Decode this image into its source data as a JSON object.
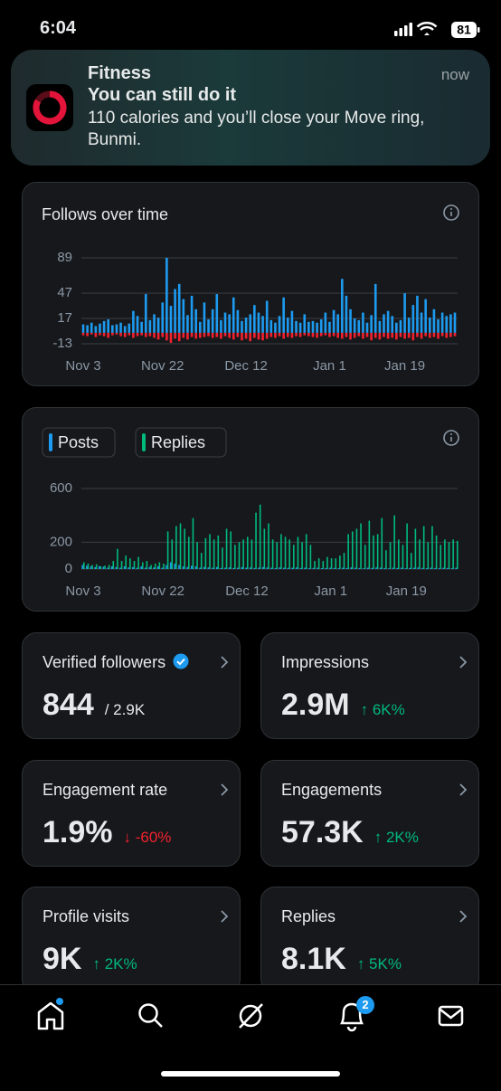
{
  "status_bar": {
    "time": "6:04",
    "battery": "81"
  },
  "notification": {
    "app": "Fitness",
    "title": "You can still do it",
    "body": "110 calories and you’ll close your Move ring, Bunmi.",
    "time": "now"
  },
  "chart_data": [
    {
      "type": "bar",
      "title": "Follows over time",
      "categories": [
        "Nov 3",
        null,
        null,
        null,
        null,
        null,
        null,
        null,
        null,
        null,
        null,
        null,
        null,
        null,
        null,
        null,
        null,
        null,
        null,
        "Nov 22",
        null,
        null,
        null,
        null,
        null,
        null,
        null,
        null,
        null,
        null,
        null,
        null,
        null,
        null,
        null,
        null,
        null,
        null,
        null,
        "Dec 12",
        null,
        null,
        null,
        null,
        null,
        null,
        null,
        null,
        null,
        null,
        null,
        null,
        null,
        null,
        null,
        null,
        null,
        null,
        null,
        "Jan 1",
        null,
        null,
        null,
        null,
        null,
        null,
        null,
        null,
        null,
        null,
        null,
        null,
        null,
        null,
        null,
        null,
        null,
        "Jan 19",
        null,
        null,
        null,
        null,
        null,
        null,
        null,
        null,
        null,
        null,
        null,
        null
      ],
      "series": [
        {
          "color": "#1d9bf0",
          "values": [
            10,
            9,
            12,
            8,
            11,
            14,
            16,
            9,
            10,
            12,
            8,
            11,
            26,
            20,
            13,
            46,
            15,
            22,
            18,
            36,
            89,
            32,
            52,
            58,
            40,
            21,
            44,
            28,
            13,
            36,
            16,
            28,
            46,
            15,
            24,
            22,
            42,
            27,
            14,
            18,
            22,
            33,
            24,
            20,
            38,
            15,
            12,
            20,
            42,
            18,
            26,
            14,
            12,
            22,
            13,
            14,
            12,
            16,
            24,
            13,
            27,
            22,
            64,
            44,
            28,
            17,
            15,
            24,
            12,
            21,
            58,
            14,
            22,
            26,
            20,
            12,
            15,
            47,
            18,
            33,
            44,
            24,
            40,
            18,
            28,
            16,
            24,
            20,
            22,
            24
          ]
        },
        {
          "color": "#f4212e",
          "values": [
            -3,
            -4,
            -2,
            -5,
            -3,
            -4,
            -6,
            -3,
            -2,
            -4,
            -5,
            -3,
            -6,
            -4,
            -3,
            -5,
            -4,
            -6,
            -8,
            -5,
            -9,
            -12,
            -7,
            -10,
            -6,
            -8,
            -5,
            -7,
            -6,
            -5,
            -4,
            -6,
            -5,
            -7,
            -4,
            -6,
            -8,
            -5,
            -9,
            -7,
            -10,
            -6,
            -8,
            -9,
            -7,
            -5,
            -6,
            -4,
            -7,
            -5,
            -6,
            -4,
            -5,
            -3,
            -4,
            -5,
            -6,
            -4,
            -3,
            -5,
            -4,
            -6,
            -7,
            -5,
            -8,
            -6,
            -4,
            -7,
            -5,
            -9,
            -6,
            -8,
            -5,
            -7,
            -6,
            -8,
            -5,
            -7,
            -6,
            -9,
            -5,
            -7,
            -4,
            -6,
            -5,
            -7,
            -4,
            -6,
            -5,
            -4
          ]
        }
      ],
      "ylim": [
        -13,
        89
      ],
      "yticks": [
        89,
        47,
        17,
        -13
      ],
      "grid": true
    },
    {
      "type": "bar",
      "categories": [
        "Nov 3",
        null,
        null,
        null,
        null,
        null,
        null,
        null,
        null,
        null,
        null,
        null,
        null,
        null,
        null,
        null,
        null,
        null,
        null,
        "Nov 22",
        null,
        null,
        null,
        null,
        null,
        null,
        null,
        null,
        null,
        null,
        null,
        null,
        null,
        null,
        null,
        null,
        null,
        null,
        null,
        "Dec 12",
        null,
        null,
        null,
        null,
        null,
        null,
        null,
        null,
        null,
        null,
        null,
        null,
        null,
        null,
        null,
        null,
        null,
        null,
        null,
        "Jan 1",
        null,
        null,
        null,
        null,
        null,
        null,
        null,
        null,
        null,
        null,
        null,
        null,
        null,
        null,
        null,
        null,
        null,
        "Jan 19",
        null,
        null,
        null,
        null,
        null,
        null,
        null,
        null,
        null,
        null,
        null,
        null
      ],
      "series": [
        {
          "name": "Posts",
          "color": "#1d9bf0",
          "values": [
            30,
            25,
            20,
            15,
            22,
            18,
            10,
            20,
            15,
            10,
            20,
            12,
            15,
            10,
            20,
            10,
            15,
            12,
            20,
            10,
            30,
            50,
            40,
            30,
            20,
            15,
            25,
            20,
            10,
            15,
            12,
            10,
            15,
            8,
            10,
            12,
            8,
            10,
            15,
            10,
            12,
            8,
            10,
            15,
            12,
            10,
            8,
            12,
            10,
            8,
            10,
            12,
            8,
            10,
            6,
            8,
            10,
            6,
            8,
            10,
            8,
            6,
            10,
            8,
            12,
            10,
            8,
            6,
            10,
            8,
            12,
            10,
            8,
            6,
            10,
            8,
            10,
            6,
            8,
            10,
            12,
            8,
            6,
            10,
            8,
            6,
            10,
            8,
            6,
            10
          ]
        },
        {
          "name": "Replies",
          "color": "#00ba7c",
          "values": [
            50,
            40,
            30,
            35,
            20,
            25,
            30,
            60,
            150,
            60,
            100,
            80,
            60,
            90,
            50,
            60,
            30,
            40,
            50,
            40,
            280,
            220,
            320,
            340,
            300,
            240,
            380,
            200,
            120,
            230,
            260,
            220,
            250,
            160,
            300,
            280,
            180,
            200,
            220,
            240,
            220,
            420,
            480,
            300,
            340,
            220,
            200,
            260,
            240,
            220,
            180,
            240,
            200,
            260,
            180,
            60,
            80,
            60,
            90,
            80,
            80,
            100,
            120,
            260,
            280,
            300,
            340,
            180,
            360,
            250,
            260,
            380,
            140,
            200,
            400,
            220,
            180,
            340,
            120,
            300,
            220,
            320,
            200,
            320,
            250,
            180,
            220,
            200,
            220,
            210
          ]
        }
      ],
      "ylim": [
        0,
        600
      ],
      "yticks": [
        600,
        200,
        0
      ],
      "grid": true,
      "legend": "top-left"
    }
  ],
  "metrics": [
    {
      "label": "Verified followers",
      "value": "844",
      "sub": "/ 2.9K",
      "sub_color": "#e7e9ea"
    },
    {
      "label": "Impressions",
      "value": "2.9M",
      "sub": "↑ 6K%",
      "sub_color": "#00ba7c"
    },
    {
      "label": "Engagement rate",
      "value": "1.9%",
      "sub": "↓ -60%",
      "sub_color": "#f4212e"
    },
    {
      "label": "Engagements",
      "value": "57.3K",
      "sub": "↑ 2K%",
      "sub_color": "#00ba7c"
    },
    {
      "label": "Profile visits",
      "value": "9K",
      "sub": "↑ 2K%",
      "sub_color": "#00ba7c"
    },
    {
      "label": "Replies",
      "value": "8.1K",
      "sub": "↑ 5K%",
      "sub_color": "#00ba7c"
    }
  ],
  "tab_bar": {
    "notifications_badge": "2"
  }
}
